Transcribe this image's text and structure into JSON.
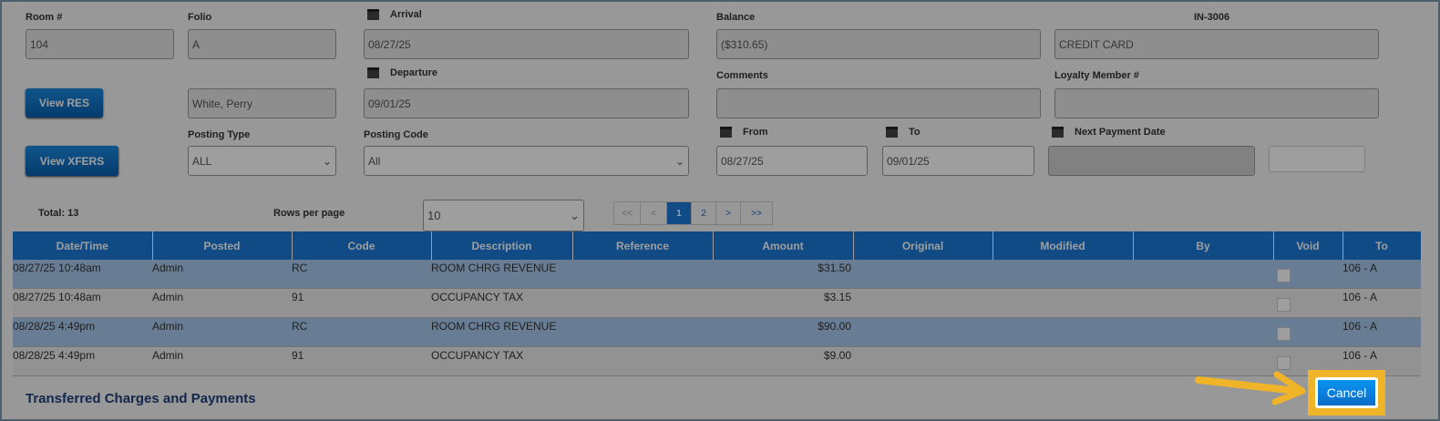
{
  "header": {
    "room_label": "Room #",
    "room_value": "104",
    "folio_label": "Folio",
    "folio_value": "A",
    "arrival_label": "Arrival",
    "arrival_value": "08/27/25",
    "balance_label": "Balance",
    "balance_value": "($310.65)",
    "invoice_label": "IN-3006",
    "payment_value": "CREDIT CARD",
    "departure_label": "Departure",
    "departure_value": "09/01/25",
    "guest_value": "White, Perry",
    "comments_label": "Comments",
    "comments_value": "",
    "loyalty_label": "Loyalty Member #",
    "loyalty_value": "",
    "view_res": "View RES",
    "view_xfers": "View XFERS",
    "posting_type_label": "Posting Type",
    "posting_type_value": "ALL",
    "posting_code_label": "Posting Code",
    "posting_code_value": "All",
    "from_label": "From",
    "from_value": "08/27/25",
    "to_label": "To",
    "to_value": "09/01/25",
    "next_payment_label": "Next Payment Date",
    "next_payment_value": ""
  },
  "list": {
    "total": "Total: 13",
    "rows_per_page_label": "Rows per page",
    "rows_per_page_value": "10",
    "pager": [
      "<<",
      "<",
      "1",
      "2",
      ">",
      ">>"
    ],
    "current_page": "1"
  },
  "table": {
    "columns": [
      "Date/Time",
      "Posted",
      "Code",
      "Description",
      "Reference",
      "Amount",
      "Original",
      "Modified",
      "By",
      "Void",
      "To"
    ],
    "rows": [
      {
        "datetime": "08/27/25 10:48am",
        "posted": "Admin",
        "code": "RC",
        "description": "ROOM CHRG REVENUE",
        "reference": "",
        "amount": "$31.50",
        "original": "",
        "modified": "",
        "by": "",
        "void": false,
        "to": "106 - A",
        "highlighted": true
      },
      {
        "datetime": "08/27/25 10:48am",
        "posted": "Admin",
        "code": "91",
        "description": "OCCUPANCY TAX",
        "reference": "",
        "amount": "$3.15",
        "original": "",
        "modified": "",
        "by": "",
        "void": false,
        "to": "106 - A",
        "highlighted": false
      },
      {
        "datetime": "08/28/25 4:49pm",
        "posted": "Admin",
        "code": "RC",
        "description": "ROOM CHRG REVENUE",
        "reference": "",
        "amount": "$90.00",
        "original": "",
        "modified": "",
        "by": "",
        "void": false,
        "to": "106 - A",
        "highlighted": true
      },
      {
        "datetime": "08/28/25 4:49pm",
        "posted": "Admin",
        "code": "91",
        "description": "OCCUPANCY TAX",
        "reference": "",
        "amount": "$9.00",
        "original": "",
        "modified": "",
        "by": "",
        "void": false,
        "to": "106 - A",
        "highlighted": false
      }
    ]
  },
  "section_title": "Transferred Charges and Payments",
  "cancel_label": "Cancel",
  "colors": {
    "accent": "#1a7ad8",
    "highlight": "#f0b429"
  }
}
